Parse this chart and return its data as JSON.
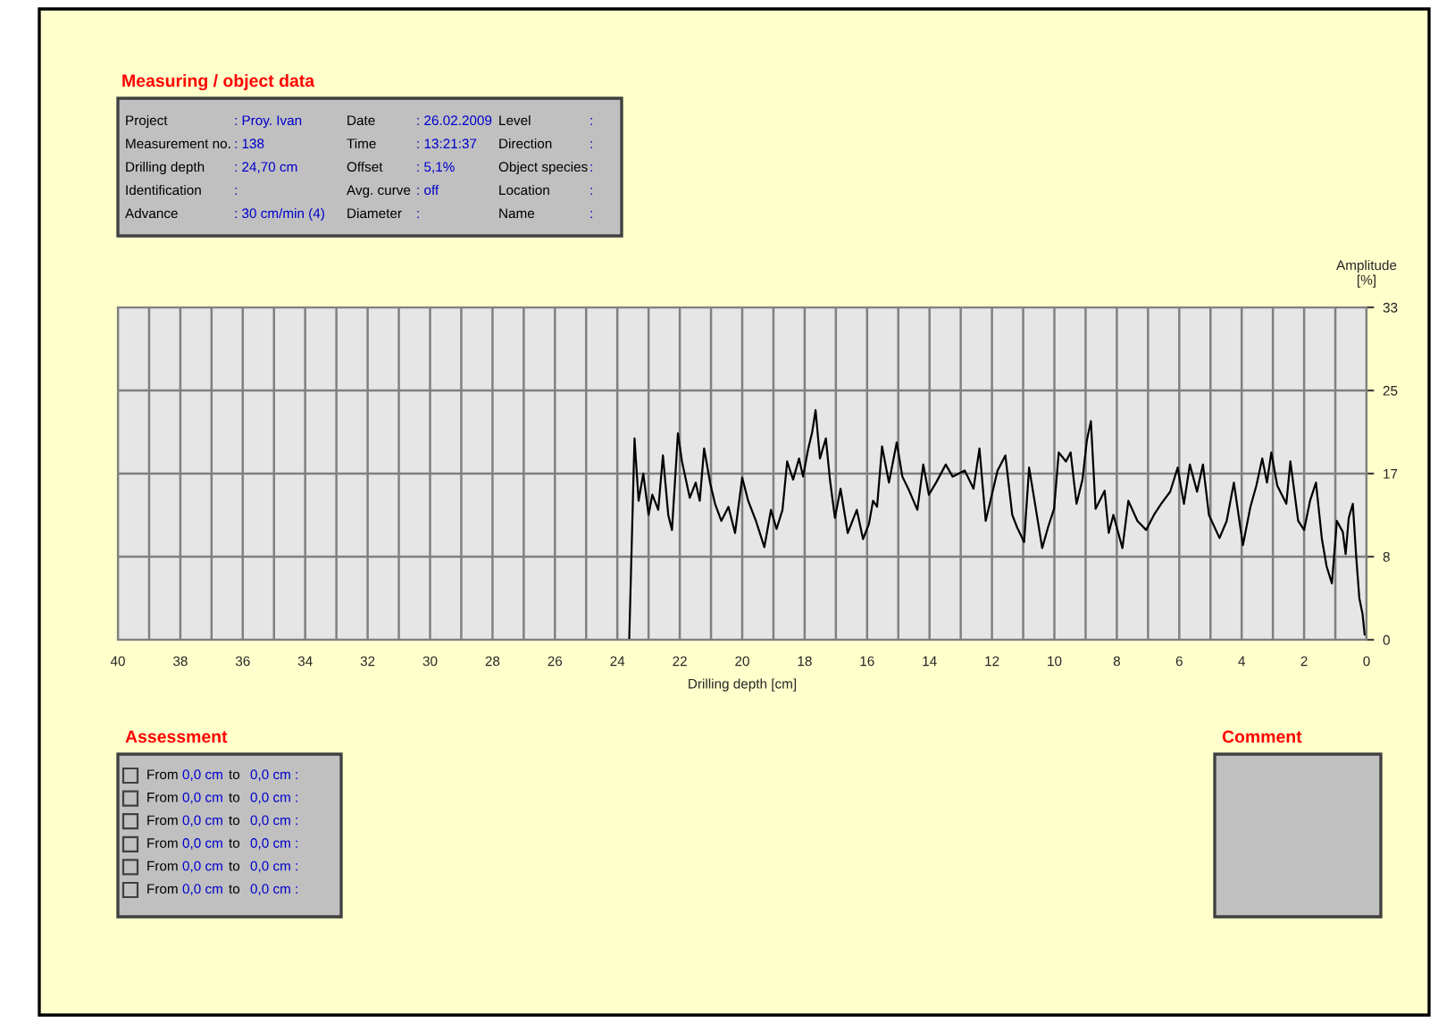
{
  "chart_data": [
    {
      "type": "other",
      "title": "Measuring / object data",
      "annotations": [
        "Project",
        ": Proy. Ivan",
        "Date",
        ": 26.02.2009",
        "Level",
        ":",
        "Measurement no.",
        ": 138",
        "Time",
        ": 13:21:37",
        "Direction",
        ":",
        "Drilling depth",
        ": 24,70 cm",
        "Offset",
        ": 5,1%",
        "Object species",
        ":",
        "Identification",
        ":",
        "Avg. curve",
        ": off",
        "Location",
        ":",
        "Advance",
        ": 30 cm/min (4)",
        "Diameter",
        ":",
        "Name",
        ":"
      ]
    },
    {
      "type": "line",
      "xlabel": "Drilling depth [cm]",
      "ylabel": "Amplitude\n[%]",
      "xlim": [
        40,
        0
      ],
      "ylim": [
        0,
        33
      ],
      "xticks": [
        40,
        {
          "value": 39,
          "label": null
        },
        38,
        {
          "value": 37,
          "label": null
        },
        36,
        {
          "value": 35,
          "label": null
        },
        34,
        {
          "value": 33,
          "label": null
        },
        32,
        {
          "value": 31,
          "label": null
        },
        30,
        {
          "value": 29,
          "label": null
        },
        28,
        {
          "value": 27,
          "label": null
        },
        26,
        {
          "value": 25,
          "label": null
        },
        24,
        {
          "value": 23,
          "label": null
        },
        22,
        {
          "value": 21,
          "label": null
        },
        20,
        {
          "value": 19,
          "label": null
        },
        18,
        {
          "value": 17,
          "label": null
        },
        16,
        {
          "value": 15,
          "label": null
        },
        14,
        {
          "value": 13,
          "label": null
        },
        12,
        {
          "value": 11,
          "label": null
        },
        10,
        {
          "value": 9,
          "label": null
        },
        8,
        {
          "value": 7,
          "label": null
        },
        6,
        {
          "value": 5,
          "label": null
        },
        4,
        {
          "value": 3,
          "label": null
        },
        2,
        {
          "value": 1,
          "label": null
        },
        0
      ],
      "yticks": [
        0,
        {
          "value": 8.25,
          "label": "8"
        },
        {
          "value": 16.5,
          "label": "17"
        },
        {
          "value": 24.75,
          "label": "25"
        },
        33
      ],
      "grid": true,
      "legend": false,
      "series": [
        {
          "color": "#000000",
          "x": [
            24.7,
            23.62,
            23.45,
            23.32,
            23.17,
            23.0,
            22.88,
            22.69,
            22.54,
            22.37,
            22.25,
            22.06,
            21.93,
            21.68,
            21.49,
            21.36,
            21.22,
            21.03,
            20.87,
            20.67,
            20.44,
            20.23,
            20.0,
            19.81,
            19.56,
            19.29,
            19.08,
            18.9,
            18.71,
            18.56,
            18.37,
            18.18,
            18.05,
            17.89,
            17.76,
            17.65,
            17.51,
            17.32,
            17.19,
            17.03,
            16.85,
            16.62,
            16.33,
            16.13,
            15.94,
            15.81,
            15.68,
            15.52,
            15.3,
            15.05,
            14.87,
            14.68,
            14.39,
            14.2,
            14.02,
            13.79,
            13.48,
            13.26,
            12.87,
            12.59,
            12.4,
            12.2,
            11.82,
            11.57,
            11.35,
            11.2,
            10.97,
            10.81,
            10.62,
            10.39,
            10.2,
            10.01,
            9.86,
            9.63,
            9.48,
            9.29,
            9.1,
            8.96,
            8.83,
            8.68,
            8.39,
            8.26,
            8.11,
            7.82,
            7.63,
            7.34,
            7.06,
            6.81,
            6.58,
            6.29,
            6.05,
            5.85,
            5.66,
            5.43,
            5.24,
            5.05,
            4.71,
            4.48,
            4.25,
            3.96,
            3.72,
            3.53,
            3.34,
            3.19,
            3.05,
            2.86,
            2.57,
            2.44,
            2.19,
            2.0,
            1.81,
            1.62,
            1.43,
            1.28,
            1.11,
            0.95,
            0.76,
            0.67,
            0.57,
            0.44,
            0.33,
            0.23,
            0.13,
            0.06
          ],
          "values": [
            0,
            0,
            20.0,
            13.8,
            16.5,
            12.4,
            14.4,
            12.9,
            18.3,
            12.4,
            10.9,
            20.5,
            17.7,
            14.1,
            15.6,
            13.8,
            19.0,
            15.6,
            13.5,
            11.8,
            13.2,
            10.6,
            16.1,
            13.8,
            11.8,
            9.2,
            12.9,
            11.0,
            12.9,
            17.7,
            15.9,
            18.0,
            16.2,
            18.9,
            20.6,
            22.8,
            18.0,
            20.0,
            15.9,
            12.1,
            15.0,
            10.6,
            12.9,
            10.0,
            11.5,
            13.8,
            13.2,
            19.2,
            15.6,
            19.6,
            16.2,
            15.0,
            12.9,
            17.4,
            14.4,
            15.6,
            17.4,
            16.2,
            16.8,
            15.0,
            19.0,
            11.8,
            16.8,
            18.3,
            12.4,
            11.2,
            9.7,
            17.1,
            13.5,
            9.1,
            11.2,
            13.0,
            18.6,
            17.7,
            18.6,
            13.5,
            15.9,
            19.8,
            21.7,
            13.0,
            14.8,
            10.6,
            12.4,
            9.1,
            13.8,
            11.8,
            10.9,
            12.4,
            13.5,
            14.7,
            17.1,
            13.5,
            17.4,
            14.7,
            17.4,
            12.4,
            10.1,
            11.8,
            15.6,
            9.4,
            13.2,
            15.3,
            18.0,
            15.6,
            18.6,
            15.3,
            13.5,
            17.7,
            11.8,
            10.9,
            13.8,
            15.6,
            10.0,
            7.3,
            5.6,
            11.8,
            10.7,
            8.5,
            12.1,
            13.5,
            8.2,
            4.1,
            2.6,
            0.5
          ]
        }
      ]
    },
    {
      "type": "other",
      "title": "Assessment",
      "annotations": [
        "From",
        "0,0 cm",
        "to",
        "0,0 cm :",
        "From",
        "0,0 cm",
        "to",
        "0,0 cm :",
        "From",
        "0,0 cm",
        "to",
        "0,0 cm :",
        "From",
        "0,0 cm",
        "to",
        "0,0 cm :",
        "From",
        "0,0 cm",
        "to",
        "0,0 cm :",
        "From",
        "0,0 cm",
        "to",
        "0,0 cm :"
      ]
    },
    {
      "type": "other",
      "title": "Comment"
    }
  ]
}
